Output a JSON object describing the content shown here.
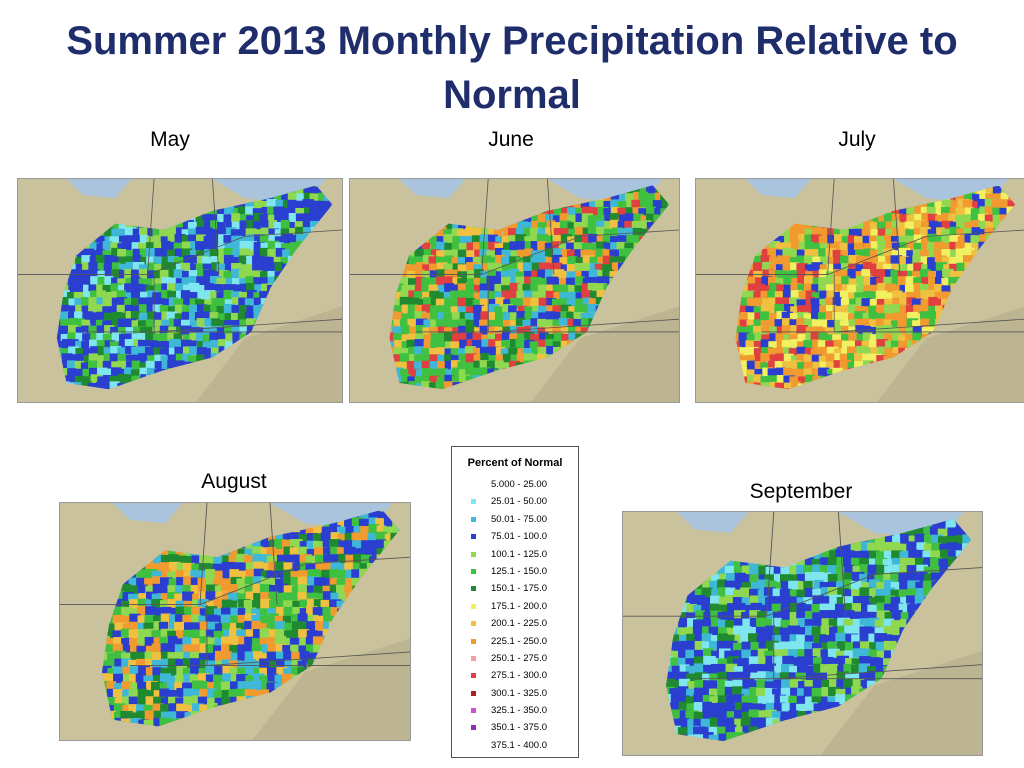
{
  "slide": {
    "title": "Summer 2013 Monthly Precipitation Relative to Normal"
  },
  "maps": [
    {
      "id": "may",
      "label": "May",
      "palette_bias": "cool"
    },
    {
      "id": "june",
      "label": "June",
      "palette_bias": "mixed"
    },
    {
      "id": "july",
      "label": "July",
      "palette_bias": "warm"
    },
    {
      "id": "august",
      "label": "August",
      "palette_bias": "mixed-cool"
    },
    {
      "id": "september",
      "label": "September",
      "palette_bias": "cool"
    }
  ],
  "legend": {
    "title": "Percent of Normal",
    "entries": [
      {
        "label": "5.000 - 25.00",
        "color": "#ffffff"
      },
      {
        "label": "25.01 - 50.00",
        "color": "#7fe6f0"
      },
      {
        "label": "50.01 - 75.00",
        "color": "#3fb8d8"
      },
      {
        "label": "75.01 - 100.0",
        "color": "#2a3fd0"
      },
      {
        "label": "100.1 - 125.0",
        "color": "#8fd850"
      },
      {
        "label": "125.1 - 150.0",
        "color": "#40c040"
      },
      {
        "label": "150.1 - 175.0",
        "color": "#208a30"
      },
      {
        "label": "175.1 - 200.0",
        "color": "#f0f060"
      },
      {
        "label": "200.1 - 225.0",
        "color": "#f0c040"
      },
      {
        "label": "225.1 - 250.0",
        "color": "#f09a30"
      },
      {
        "label": "250.1 - 275.0",
        "color": "#f4a0a0"
      },
      {
        "label": "275.1 - 300.0",
        "color": "#e04040"
      },
      {
        "label": "300.1 - 325.0",
        "color": "#b02020"
      },
      {
        "label": "325.1 - 350.0",
        "color": "#d050d0"
      },
      {
        "label": "350.1 - 375.0",
        "color": "#9030b0"
      },
      {
        "label": "375.1 - 400.0",
        "color": "#ffffff"
      }
    ]
  }
}
